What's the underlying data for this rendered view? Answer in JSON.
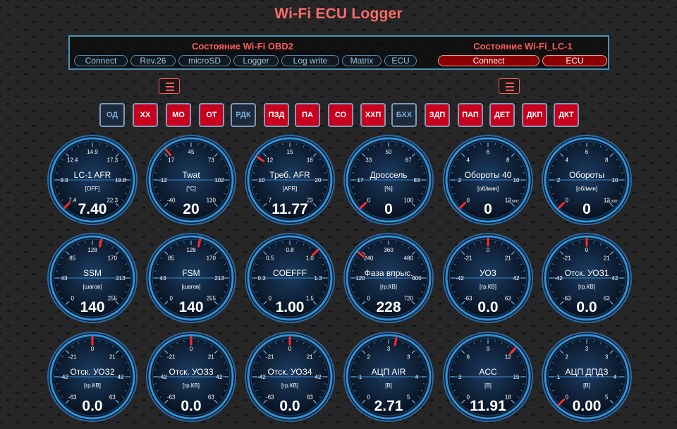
{
  "title": "Wi-Fi ECU Logger",
  "obd": {
    "header": "Состояние Wi-Fi OBD2",
    "buttons": [
      "Connect",
      "Rev.26",
      "microSD",
      "Logger",
      "Log write",
      "Matrix",
      "ECU"
    ]
  },
  "lc": {
    "header": "Состояние Wi-Fi_LC-1",
    "buttons": [
      "Connect",
      "ECU"
    ]
  },
  "icons": {
    "menu_left": "menu-icon",
    "menu_right": "menu-icon"
  },
  "colors": {
    "accent": "#ff5a5a",
    "active": "#c8001e",
    "inactive": "#1c2a3a",
    "frame": "#4a90b8"
  },
  "toggles": [
    {
      "label": "ОД",
      "on": false
    },
    {
      "label": "ХХ",
      "on": true
    },
    {
      "label": "МО",
      "on": true
    },
    {
      "label": "ОТ",
      "on": true
    },
    {
      "label": "РДК",
      "on": false
    },
    {
      "label": "ПЗД",
      "on": true
    },
    {
      "label": "ПА",
      "on": true
    },
    {
      "label": "СО",
      "on": true
    },
    {
      "label": "ХХП",
      "on": true
    },
    {
      "label": "БХХ",
      "on": false
    },
    {
      "label": "ЗДП",
      "on": true
    },
    {
      "label": "ПАП",
      "on": true
    },
    {
      "label": "ДЕТ",
      "on": true
    },
    {
      "label": "ДКП",
      "on": true
    },
    {
      "label": "ДКТ",
      "on": true
    }
  ],
  "gauges": [
    {
      "label": "LC-1 AFR",
      "unit": "[OFF]",
      "value": "7.40",
      "needle": 7.4,
      "ticks": [
        "7.4",
        "9.9",
        "12.4",
        "14.9",
        "17.3",
        "19.8",
        "22.3"
      ]
    },
    {
      "label": "Twat",
      "unit": "[°C]",
      "value": "20",
      "needle": 20,
      "ticks": [
        "-40",
        "-12",
        "17",
        "45",
        "73",
        "102",
        "130"
      ]
    },
    {
      "label": "Треб. AFR",
      "unit": "[AFR]",
      "value": "11.77",
      "needle": 11.77,
      "ticks": [
        "7",
        "10",
        "12",
        "15",
        "18",
        "20",
        "23"
      ]
    },
    {
      "label": "Дроссель",
      "unit": "[%]",
      "value": "0",
      "needle": 0,
      "ticks": [
        "0",
        "17",
        "33",
        "50",
        "67",
        "83",
        "100"
      ]
    },
    {
      "label": "Обороты 40",
      "unit": "[об/мин]",
      "value": "0",
      "needle": 0,
      "x1000": "x1000",
      "ticks": [
        "0",
        "2",
        "4",
        "6",
        "8",
        "10",
        "12"
      ]
    },
    {
      "label": "Обороты",
      "unit": "[об/мин]",
      "value": "0",
      "needle": 0,
      "x1000": "x1000",
      "ticks": [
        "0",
        "2",
        "4",
        "6",
        "8",
        "10",
        "12"
      ]
    },
    {
      "label": "SSM",
      "unit": "[шагов]",
      "value": "140",
      "needle": 140,
      "ticks": [
        "0",
        "43",
        "85",
        "128",
        "170",
        "213",
        "255"
      ]
    },
    {
      "label": "FSM",
      "unit": "[шагов]",
      "value": "140",
      "needle": 140,
      "ticks": [
        "0",
        "43",
        "85",
        "128",
        "170",
        "213",
        "255"
      ]
    },
    {
      "label": "COEFFF",
      "unit": "",
      "value": "1.00",
      "needle": 1.0,
      "ticks": [
        "0",
        "0.3",
        "0.5",
        "0.8",
        "1.0",
        "1.3",
        "1.5"
      ]
    },
    {
      "label": "Фаза впрыс.",
      "unit": "[гр.КВ]",
      "value": "228",
      "needle": 228,
      "ticks": [
        "0",
        "120",
        "240",
        "360",
        "480",
        "600",
        "720"
      ]
    },
    {
      "label": "УОЗ",
      "unit": "[гр.КВ]",
      "value": "0.0",
      "needle": 0,
      "ticks": [
        "-63",
        "-42",
        "-21",
        "0",
        "21",
        "42",
        "63"
      ]
    },
    {
      "label": "Отск. УОЗ1",
      "unit": "[гр.КВ]",
      "value": "0.0",
      "needle": 0,
      "ticks": [
        "-63",
        "-42",
        "-21",
        "0",
        "21",
        "42",
        "63"
      ]
    },
    {
      "label": "Отск. УОЗ2",
      "unit": "[гр.КВ]",
      "value": "0.0",
      "needle": 0,
      "ticks": [
        "-63",
        "-42",
        "-21",
        "0",
        "21",
        "42",
        "63"
      ]
    },
    {
      "label": "Отск. УОЗ3",
      "unit": "[гр.КВ]",
      "value": "0.0",
      "needle": 0,
      "ticks": [
        "-63",
        "-42",
        "-21",
        "0",
        "21",
        "42",
        "63"
      ]
    },
    {
      "label": "Отск. УОЗ4",
      "unit": "[гр.КВ]",
      "value": "0.0",
      "needle": 0,
      "ticks": [
        "-63",
        "-42",
        "-21",
        "0",
        "21",
        "42",
        "63"
      ]
    },
    {
      "label": "АЦП AIR",
      "unit": "[В]",
      "value": "2.71",
      "needle": 2.71,
      "ticks": [
        "0",
        "1",
        "2",
        "3",
        "3",
        "4",
        "5"
      ]
    },
    {
      "label": "ACC",
      "unit": "[В]",
      "value": "11.91",
      "needle": 11.91,
      "ticks": [
        "0",
        "3",
        "6",
        "9",
        "12",
        "15",
        "18"
      ]
    },
    {
      "label": "АЦП ДПДЗ",
      "unit": "[В]",
      "value": "0.00",
      "needle": 0,
      "ticks": [
        "0",
        "1",
        "2",
        "3",
        "3",
        "4",
        "5"
      ]
    }
  ]
}
